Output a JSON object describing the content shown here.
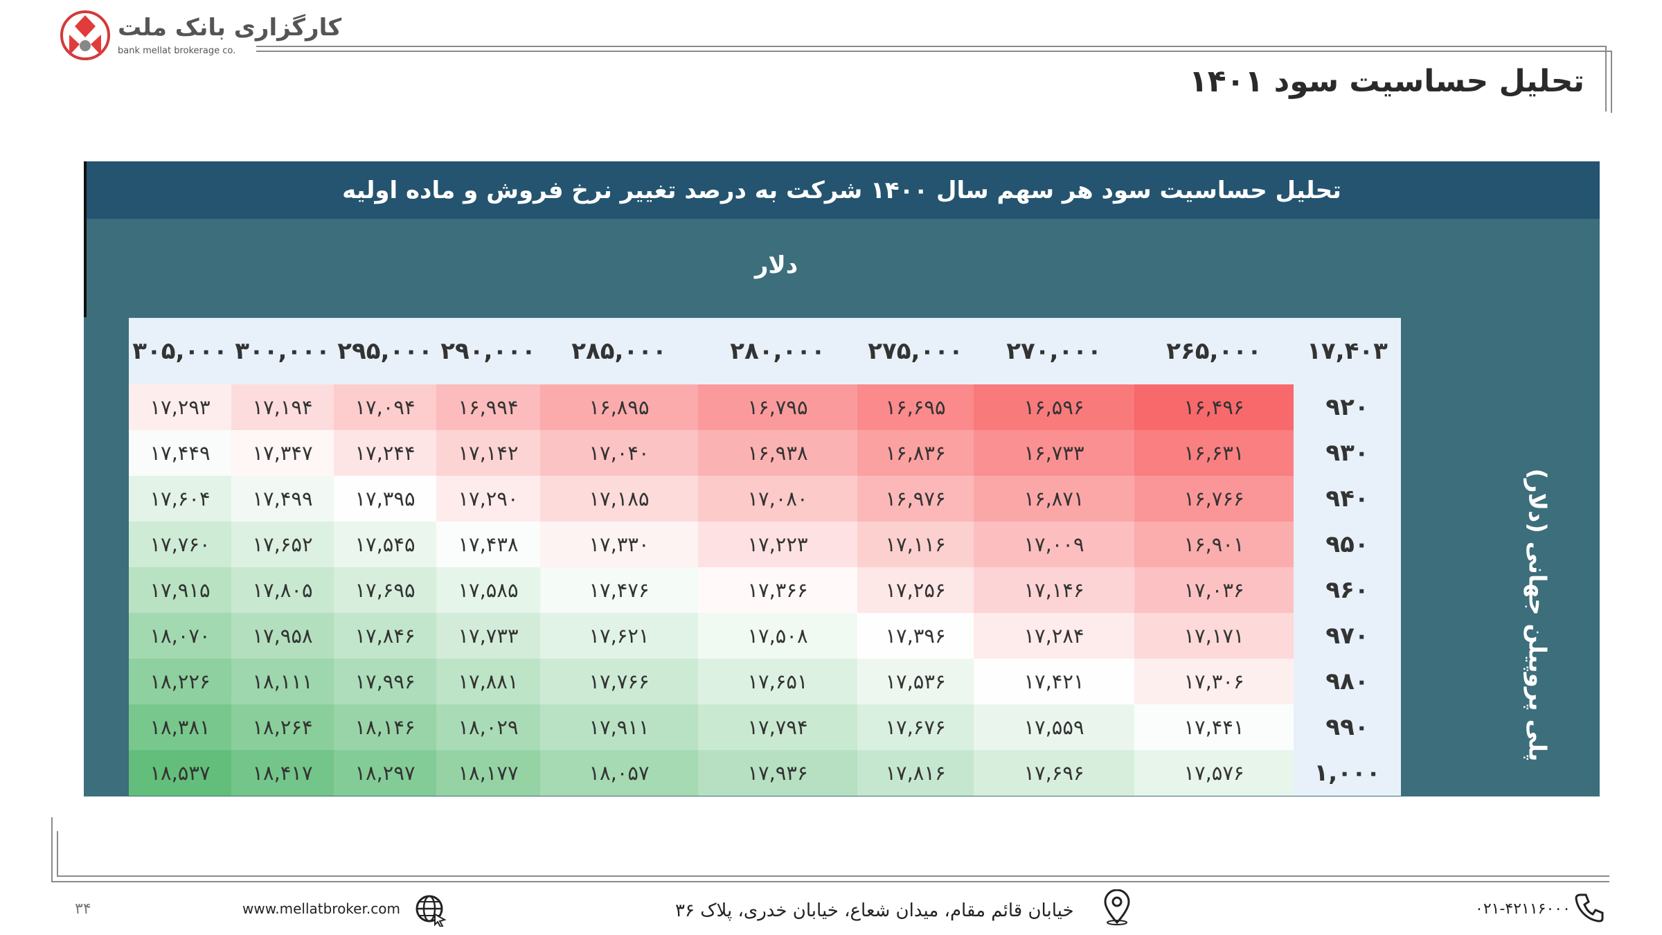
{
  "header": {
    "logo_fa": "کارگزاری بانک ملت",
    "logo_en": "bank mellat brokerage co.",
    "page_title": "تحلیل حساسیت سود ۱۴۰۱"
  },
  "table": {
    "title": "تحلیل حساسیت سود هر سهم سال ۱۴۰۰  شرکت به درصد تغییر نرخ فروش و ماده اولیه",
    "col_axis_label": "دلار",
    "row_axis_label": "پلی پروپیلن جهانی (دلار)",
    "corner": "۱۷,۴۰۳",
    "columns": [
      "۲۶۵,۰۰۰",
      "۲۷۰,۰۰۰",
      "۲۷۵,۰۰۰",
      "۲۸۰,۰۰۰",
      "۲۸۵,۰۰۰",
      "۲۹۰,۰۰۰",
      "۲۹۵,۰۰۰",
      "۳۰۰,۰۰۰",
      "۳۰۵,۰۰۰"
    ],
    "rows": [
      {
        "label": "۹۲۰",
        "values": [
          "۱۶,۴۹۶",
          "۱۶,۵۹۶",
          "۱۶,۶۹۵",
          "۱۶,۷۹۵",
          "۱۶,۸۹۵",
          "۱۶,۹۹۴",
          "۱۷,۰۹۴",
          "۱۷,۱۹۴",
          "۱۷,۲۹۳"
        ]
      },
      {
        "label": "۹۳۰",
        "values": [
          "۱۶,۶۳۱",
          "۱۶,۷۳۳",
          "۱۶,۸۳۶",
          "۱۶,۹۳۸",
          "۱۷,۰۴۰",
          "۱۷,۱۴۲",
          "۱۷,۲۴۴",
          "۱۷,۳۴۷",
          "۱۷,۴۴۹"
        ]
      },
      {
        "label": "۹۴۰",
        "values": [
          "۱۶,۷۶۶",
          "۱۶,۸۷۱",
          "۱۶,۹۷۶",
          "۱۷,۰۸۰",
          "۱۷,۱۸۵",
          "۱۷,۲۹۰",
          "۱۷,۳۹۵",
          "۱۷,۴۹۹",
          "۱۷,۶۰۴"
        ]
      },
      {
        "label": "۹۵۰",
        "values": [
          "۱۶,۹۰۱",
          "۱۷,۰۰۹",
          "۱۷,۱۱۶",
          "۱۷,۲۲۳",
          "۱۷,۳۳۰",
          "۱۷,۴۳۸",
          "۱۷,۵۴۵",
          "۱۷,۶۵۲",
          "۱۷,۷۶۰"
        ]
      },
      {
        "label": "۹۶۰",
        "values": [
          "۱۷,۰۳۶",
          "۱۷,۱۴۶",
          "۱۷,۲۵۶",
          "۱۷,۳۶۶",
          "۱۷,۴۷۶",
          "۱۷,۵۸۵",
          "۱۷,۶۹۵",
          "۱۷,۸۰۵",
          "۱۷,۹۱۵"
        ]
      },
      {
        "label": "۹۷۰",
        "values": [
          "۱۷,۱۷۱",
          "۱۷,۲۸۴",
          "۱۷,۳۹۶",
          "۱۷,۵۰۸",
          "۱۷,۶۲۱",
          "۱۷,۷۳۳",
          "۱۷,۸۴۶",
          "۱۷,۹۵۸",
          "۱۸,۰۷۰"
        ]
      },
      {
        "label": "۹۸۰",
        "values": [
          "۱۷,۳۰۶",
          "۱۷,۴۲۱",
          "۱۷,۵۳۶",
          "۱۷,۶۵۱",
          "۱۷,۷۶۶",
          "۱۷,۸۸۱",
          "۱۷,۹۹۶",
          "۱۸,۱۱۱",
          "۱۸,۲۲۶"
        ]
      },
      {
        "label": "۹۹۰",
        "values": [
          "۱۷,۴۴۱",
          "۱۷,۵۵۹",
          "۱۷,۶۷۶",
          "۱۷,۷۹۴",
          "۱۷,۹۱۱",
          "۱۸,۰۲۹",
          "۱۸,۱۴۶",
          "۱۸,۲۶۴",
          "۱۸,۳۸۱"
        ]
      },
      {
        "label": "۱,۰۰۰",
        "values": [
          "۱۷,۵۷۶",
          "۱۷,۶۹۶",
          "۱۷,۸۱۶",
          "۱۷,۹۳۶",
          "۱۸,۰۵۷",
          "۱۸,۱۷۷",
          "۱۸,۲۹۷",
          "۱۸,۴۱۷",
          "۱۸,۵۳۷"
        ]
      }
    ],
    "pivot_value": 17403,
    "numeric_rows": [
      [
        16496,
        16596,
        16695,
        16795,
        16895,
        16994,
        17094,
        17194,
        17293
      ],
      [
        16631,
        16733,
        16836,
        16938,
        17040,
        17142,
        17244,
        17347,
        17449
      ],
      [
        16766,
        16871,
        16976,
        17080,
        17185,
        17290,
        17395,
        17499,
        17604
      ],
      [
        16901,
        17009,
        17116,
        17223,
        17330,
        17438,
        17545,
        17652,
        17760
      ],
      [
        17036,
        17146,
        17256,
        17366,
        17476,
        17585,
        17695,
        17805,
        17915
      ],
      [
        17171,
        17284,
        17396,
        17508,
        17621,
        17733,
        17846,
        17958,
        18070
      ],
      [
        17306,
        17421,
        17536,
        17651,
        17766,
        17881,
        17996,
        18111,
        18226
      ],
      [
        17441,
        17559,
        17676,
        17794,
        17911,
        18029,
        18146,
        18264,
        18381
      ],
      [
        17576,
        17696,
        17816,
        17936,
        18057,
        18177,
        18297,
        18417,
        18537
      ]
    ],
    "colors": {
      "low": "#f8696b",
      "mid": "#ffffff",
      "high": "#63be7b",
      "header_bg": "#24546f",
      "panel_bg": "#3c6e7b",
      "axis_cell_bg": "#e8f1f9"
    }
  },
  "footer": {
    "page_number": "۳۴",
    "website": "www.mellatbroker.com",
    "address": "خیابان قائم مقام، میدان شعاع، خیابان خدری، پلاک ۳۶",
    "phone": "۰۲۱-۴۲۱۱۶۰۰۰"
  }
}
